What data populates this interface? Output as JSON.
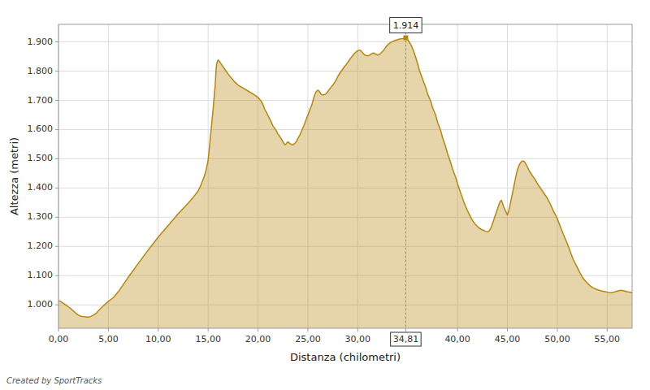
{
  "chart_data": {
    "type": "area",
    "xlabel": "Distanza (chilometri)",
    "ylabel": "Altezza (metri)",
    "caption": "Created by SportTracks",
    "color": "#B8860B",
    "grid": true,
    "xlim": [
      0,
      57.5
    ],
    "ylim": [
      920,
      1960
    ],
    "xticks": [
      {
        "value": 0.0,
        "label": "0,00"
      },
      {
        "value": 5.0,
        "label": "5,00"
      },
      {
        "value": 10.0,
        "label": "10,00"
      },
      {
        "value": 15.0,
        "label": "15,00"
      },
      {
        "value": 20.0,
        "label": "20,00"
      },
      {
        "value": 25.0,
        "label": "25,00"
      },
      {
        "value": 30.0,
        "label": "30,00"
      },
      {
        "value": 34.81,
        "label": "34,81"
      },
      {
        "value": 40.0,
        "label": "40,00"
      },
      {
        "value": 45.0,
        "label": "45,00"
      },
      {
        "value": 50.0,
        "label": "50,00"
      },
      {
        "value": 55.0,
        "label": "55,00"
      }
    ],
    "yticks": [
      {
        "value": 1000,
        "label": "1.000"
      },
      {
        "value": 1100,
        "label": "1.100"
      },
      {
        "value": 1200,
        "label": "1.200"
      },
      {
        "value": 1300,
        "label": "1.300"
      },
      {
        "value": 1400,
        "label": "1.400"
      },
      {
        "value": 1500,
        "label": "1.500"
      },
      {
        "value": 1600,
        "label": "1.600"
      },
      {
        "value": 1700,
        "label": "1.700"
      },
      {
        "value": 1800,
        "label": "1.800"
      },
      {
        "value": 1900,
        "label": "1.900"
      }
    ],
    "annotations": [
      {
        "x": 34.81,
        "y": 1914,
        "text": "1.914"
      }
    ],
    "x": [
      0.0,
      0.2,
      0.5,
      0.8,
      1.0,
      1.2,
      1.4,
      1.6,
      1.8,
      2.0,
      2.2,
      2.5,
      2.8,
      3.0,
      3.2,
      3.5,
      3.8,
      4.0,
      4.3,
      4.6,
      5.0,
      5.5,
      6.0,
      6.5,
      7.0,
      7.5,
      8.0,
      8.5,
      9.0,
      9.5,
      10.0,
      10.5,
      11.0,
      11.5,
      12.0,
      12.5,
      13.0,
      13.5,
      14.0,
      14.3,
      14.6,
      14.8,
      15.0,
      15.1,
      15.2,
      15.3,
      15.4,
      15.5,
      15.6,
      15.7,
      15.75,
      15.8,
      15.85,
      16.0,
      16.1,
      16.3,
      16.5,
      16.8,
      17.0,
      17.3,
      17.6,
      18.0,
      18.5,
      19.0,
      19.5,
      20.0,
      20.3,
      20.5,
      20.7,
      21.0,
      21.3,
      21.5,
      21.8,
      22.0,
      22.2,
      22.4,
      22.5,
      22.6,
      22.7,
      22.8,
      22.9,
      23.0,
      23.1,
      23.2,
      23.3,
      23.4,
      23.5,
      23.7,
      23.9,
      24.0,
      24.2,
      24.4,
      24.6,
      24.8,
      25.0,
      25.2,
      25.4,
      25.5,
      25.6,
      25.7,
      25.8,
      25.9,
      26.0,
      26.1,
      26.2,
      26.3,
      26.5,
      26.8,
      27.0,
      27.2,
      27.5,
      27.8,
      28.0,
      28.3,
      28.6,
      29.0,
      29.3,
      29.6,
      29.8,
      30.0,
      30.2,
      30.3,
      30.5,
      30.7,
      31.0,
      31.2,
      31.4,
      31.6,
      31.8,
      32.0,
      32.2,
      32.4,
      32.6,
      32.8,
      33.0,
      33.2,
      33.4,
      33.6,
      33.8,
      34.0,
      34.2,
      34.4,
      34.6,
      34.81,
      35.0,
      35.2,
      35.4,
      35.6,
      35.8,
      36.0,
      36.2,
      36.5,
      36.8,
      37.0,
      37.3,
      37.5,
      37.8,
      38.0,
      38.3,
      38.5,
      38.8,
      39.0,
      39.3,
      39.5,
      39.8,
      40.0,
      40.2,
      40.4,
      40.6,
      40.8,
      41.0,
      41.2,
      41.4,
      41.6,
      41.8,
      42.0,
      42.2,
      42.4,
      42.6,
      42.8,
      43.0,
      43.1,
      43.2,
      43.3,
      43.4,
      43.5,
      43.6,
      43.7,
      43.8,
      43.9,
      44.0,
      44.1,
      44.2,
      44.3,
      44.4,
      44.5,
      44.6,
      44.7,
      44.8,
      44.9,
      45.0,
      45.1,
      45.2,
      45.3,
      45.4,
      45.5,
      45.6,
      45.7,
      45.8,
      45.9,
      46.0,
      46.1,
      46.2,
      46.3,
      46.4,
      46.5,
      46.6,
      46.7,
      46.8,
      47.0,
      47.2,
      47.5,
      47.8,
      48.0,
      48.3,
      48.6,
      49.0,
      49.3,
      49.6,
      50.0,
      50.3,
      50.6,
      51.0,
      51.3,
      51.6,
      52.0,
      52.3,
      52.6,
      53.0,
      53.3,
      53.6,
      54.0,
      54.4,
      54.8,
      55.2,
      55.5,
      55.8,
      56.1,
      56.4,
      56.7,
      57.0,
      57.5
    ],
    "values": [
      1015,
      1012,
      1005,
      998,
      993,
      988,
      982,
      976,
      970,
      965,
      962,
      960,
      958,
      958,
      960,
      965,
      972,
      980,
      990,
      1000,
      1012,
      1025,
      1045,
      1070,
      1095,
      1118,
      1142,
      1165,
      1188,
      1210,
      1232,
      1252,
      1272,
      1292,
      1312,
      1330,
      1348,
      1368,
      1390,
      1412,
      1438,
      1462,
      1495,
      1530,
      1565,
      1600,
      1635,
      1670,
      1710,
      1748,
      1778,
      1808,
      1825,
      1838,
      1835,
      1825,
      1815,
      1800,
      1790,
      1778,
      1765,
      1752,
      1742,
      1732,
      1722,
      1710,
      1698,
      1685,
      1668,
      1648,
      1628,
      1612,
      1598,
      1585,
      1575,
      1565,
      1558,
      1553,
      1548,
      1550,
      1555,
      1558,
      1555,
      1552,
      1550,
      1548,
      1548,
      1553,
      1562,
      1570,
      1582,
      1598,
      1614,
      1632,
      1650,
      1668,
      1685,
      1698,
      1710,
      1720,
      1728,
      1732,
      1735,
      1732,
      1728,
      1722,
      1718,
      1722,
      1730,
      1740,
      1752,
      1768,
      1782,
      1798,
      1812,
      1830,
      1845,
      1858,
      1865,
      1870,
      1872,
      1870,
      1862,
      1855,
      1852,
      1855,
      1860,
      1862,
      1858,
      1855,
      1858,
      1865,
      1872,
      1882,
      1890,
      1896,
      1900,
      1903,
      1906,
      1908,
      1910,
      1911,
      1912,
      1914,
      1907,
      1898,
      1885,
      1868,
      1848,
      1825,
      1800,
      1772,
      1745,
      1722,
      1698,
      1675,
      1650,
      1625,
      1598,
      1572,
      1542,
      1518,
      1488,
      1465,
      1438,
      1415,
      1395,
      1375,
      1355,
      1338,
      1322,
      1308,
      1295,
      1284,
      1275,
      1268,
      1262,
      1258,
      1255,
      1252,
      1250,
      1252,
      1255,
      1260,
      1268,
      1278,
      1288,
      1298,
      1308,
      1318,
      1328,
      1338,
      1348,
      1355,
      1358,
      1348,
      1338,
      1330,
      1322,
      1315,
      1308,
      1318,
      1332,
      1348,
      1365,
      1382,
      1398,
      1415,
      1432,
      1448,
      1462,
      1472,
      1480,
      1486,
      1490,
      1492,
      1492,
      1490,
      1485,
      1472,
      1458,
      1442,
      1428,
      1415,
      1400,
      1385,
      1365,
      1345,
      1322,
      1295,
      1268,
      1242,
      1210,
      1182,
      1155,
      1128,
      1108,
      1090,
      1075,
      1065,
      1058,
      1052,
      1048,
      1045,
      1042,
      1042,
      1045,
      1048,
      1050,
      1048,
      1045,
      1042
    ]
  }
}
